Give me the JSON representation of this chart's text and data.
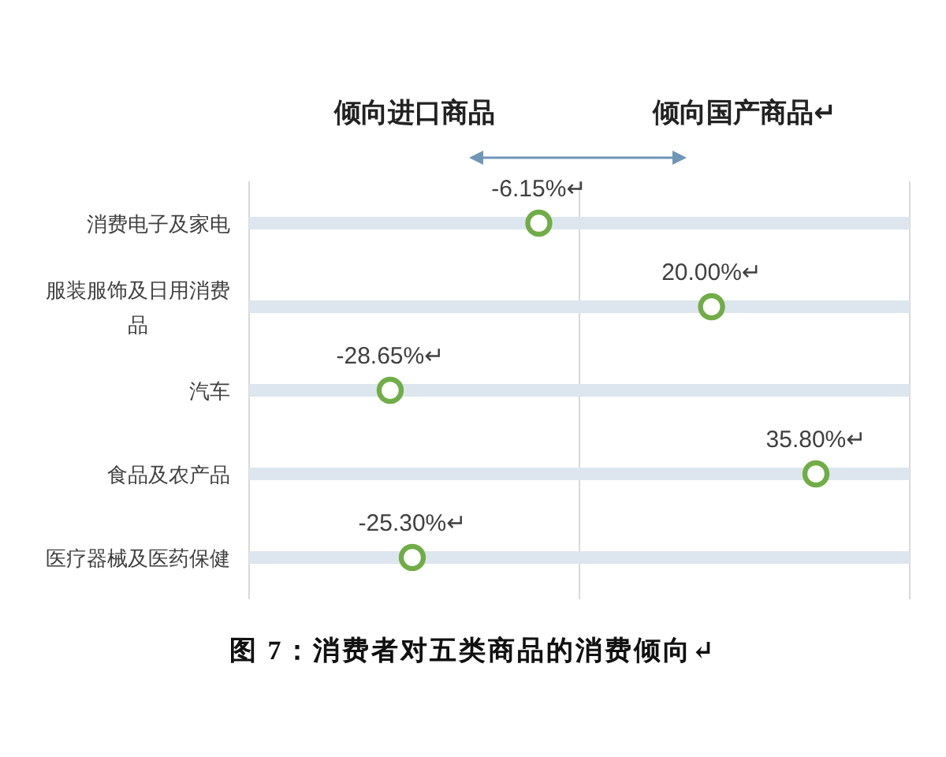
{
  "chart_data": {
    "type": "scatter",
    "orientation": "horizontal",
    "title": "图 7：消费者对五类商品的消费倾向↵",
    "categories": [
      "消费电子及家电",
      "服装服饰及日用消费品",
      "汽车",
      "食品及农产品",
      "医疗器械及医药保健"
    ],
    "values": [
      -6.15,
      20.0,
      -28.65,
      35.8,
      -25.3
    ],
    "value_labels": [
      "-6.15%↵",
      "20.00%↵",
      "-28.65%↵",
      "35.80%↵",
      "-25.30%↵"
    ],
    "color": "#70ad47",
    "marker": "circle",
    "xlim": [
      -50,
      50
    ],
    "xticks": [
      {
        "value": -50,
        "label": null
      },
      {
        "value": 0,
        "label": null
      },
      {
        "value": 50,
        "label": null
      }
    ],
    "tick_labels": "y",
    "grid": true,
    "annotations": [
      "倾向进口商品",
      "倾向国产商品↵"
    ]
  }
}
